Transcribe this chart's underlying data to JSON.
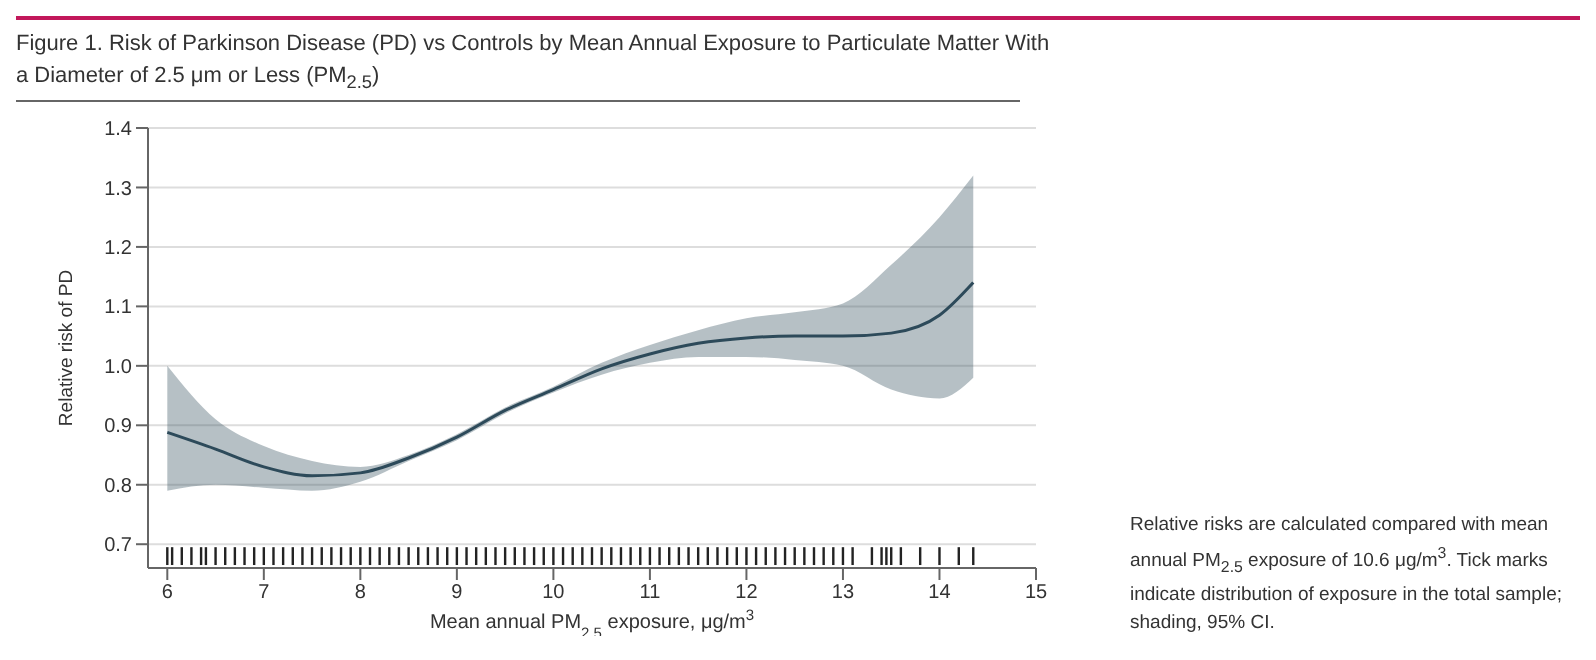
{
  "chart_data": {
    "type": "line",
    "title": "Figure 1. Risk of Parkinson Disease (PD) vs Controls by Mean Annual Exposure to Particulate Matter With a Diameter of 2.5 μm or Less (PM$_{2.5}$)",
    "xlabel": "Mean annual PM$_{2.5}$ exposure, μg/m$^{3}$",
    "ylabel": "Relative risk of PD",
    "annotations": [
      "Relative risks are calculated compared with mean annual PM$_{2.5}$ exposure of 10.6 μg/m$^{3}$. Tick marks indicate distribution of exposure in the total sample; shading, 95% CI."
    ],
    "xlim": [
      5.8,
      15
    ],
    "xticks": [
      6,
      7,
      8,
      9,
      10,
      11,
      12,
      13,
      14,
      15
    ],
    "ylim": [
      0.66,
      1.4
    ],
    "yticks": [
      0.7,
      0.8,
      0.9,
      {
        "value": 1,
        "label": "1.0"
      },
      1.1,
      1.2,
      1.3,
      1.4
    ],
    "grid": "y",
    "marker": "none",
    "line_style": "solid",
    "series": [
      {
        "color": "#2d4a5a",
        "x": [
          6,
          6.5,
          7,
          7.5,
          8,
          8.5,
          9,
          9.5,
          10,
          10.5,
          11,
          11.5,
          12,
          12.5,
          13,
          13.5,
          14,
          14.35
        ],
        "values": [
          0.888,
          0.86,
          0.83,
          0.815,
          0.82,
          0.845,
          0.88,
          0.925,
          0.96,
          0.995,
          1.02,
          1.038,
          1.047,
          1.05,
          1.05,
          1.055,
          1.085,
          1.14
        ],
        "lower": [
          0.79,
          0.8,
          0.795,
          0.79,
          0.805,
          0.84,
          0.875,
          0.92,
          0.955,
          0.985,
          1.005,
          1.015,
          1.015,
          1.01,
          1.0,
          0.96,
          0.945,
          0.98
        ],
        "upper": [
          1.0,
          0.91,
          0.865,
          0.84,
          0.83,
          0.85,
          0.885,
          0.93,
          0.965,
          1.005,
          1.035,
          1.06,
          1.08,
          1.09,
          1.105,
          1.17,
          1.25,
          1.32
        ]
      },
      {
        "type": "bar",
        "color": "#222222",
        "base": [
          0.665,
          0.665,
          0.665,
          0.665,
          0.665,
          0.665,
          0.665,
          0.665,
          0.665,
          0.665,
          0.665,
          0.665,
          0.665,
          0.665,
          0.665,
          0.665,
          0.665,
          0.665,
          0.665,
          0.665,
          0.665,
          0.665,
          0.665,
          0.665,
          0.665,
          0.665,
          0.665,
          0.665,
          0.665,
          0.665,
          0.665,
          0.665,
          0.665,
          0.665,
          0.665,
          0.665,
          0.665,
          0.665,
          0.665,
          0.665,
          0.665,
          0.665,
          0.665,
          0.665,
          0.665,
          0.665,
          0.665,
          0.665,
          0.665,
          0.665,
          0.665,
          0.665,
          0.665,
          0.665,
          0.665,
          0.665,
          0.665,
          0.665,
          0.665,
          0.665,
          0.665,
          0.665,
          0.665,
          0.665,
          0.665,
          0.665,
          0.665,
          0.665,
          0.665,
          0.665,
          0.665,
          0.665,
          0.665,
          0.665,
          0.665,
          0.665,
          0.665,
          0.665,
          0.665,
          0.665,
          0.665,
          0.665
        ],
        "x": [
          6.0,
          6.05,
          6.15,
          6.25,
          6.35,
          6.4,
          6.5,
          6.6,
          6.7,
          6.8,
          6.9,
          7.0,
          7.1,
          7.2,
          7.3,
          7.4,
          7.5,
          7.6,
          7.7,
          7.8,
          7.9,
          8.0,
          8.1,
          8.2,
          8.3,
          8.4,
          8.5,
          8.6,
          8.7,
          8.8,
          8.9,
          9.0,
          9.1,
          9.2,
          9.3,
          9.4,
          9.5,
          9.6,
          9.7,
          9.8,
          9.9,
          10.0,
          10.1,
          10.2,
          10.3,
          10.4,
          10.5,
          10.6,
          10.7,
          10.8,
          10.9,
          11.0,
          11.1,
          11.2,
          11.3,
          11.4,
          11.5,
          11.6,
          11.7,
          11.8,
          11.9,
          12.0,
          12.1,
          12.2,
          12.3,
          12.4,
          12.5,
          12.6,
          12.7,
          12.8,
          12.9,
          13.0,
          13.1,
          13.3,
          13.4,
          13.45,
          13.5,
          13.6,
          13.8,
          14.0,
          14.2,
          14.35
        ],
        "values": [
          0.03,
          0.03,
          0.03,
          0.03,
          0.03,
          0.03,
          0.03,
          0.03,
          0.03,
          0.03,
          0.03,
          0.03,
          0.03,
          0.03,
          0.03,
          0.03,
          0.03,
          0.03,
          0.03,
          0.03,
          0.03,
          0.03,
          0.03,
          0.03,
          0.03,
          0.03,
          0.03,
          0.03,
          0.03,
          0.03,
          0.03,
          0.03,
          0.03,
          0.03,
          0.03,
          0.03,
          0.03,
          0.03,
          0.03,
          0.03,
          0.03,
          0.03,
          0.03,
          0.03,
          0.03,
          0.03,
          0.03,
          0.03,
          0.03,
          0.03,
          0.03,
          0.03,
          0.03,
          0.03,
          0.03,
          0.03,
          0.03,
          0.03,
          0.03,
          0.03,
          0.03,
          0.03,
          0.03,
          0.03,
          0.03,
          0.03,
          0.03,
          0.03,
          0.03,
          0.03,
          0.03,
          0.03,
          0.03,
          0.03,
          0.03,
          0.03,
          0.03,
          0.03,
          0.03,
          0.03,
          0.03,
          0.03
        ]
      }
    ]
  }
}
